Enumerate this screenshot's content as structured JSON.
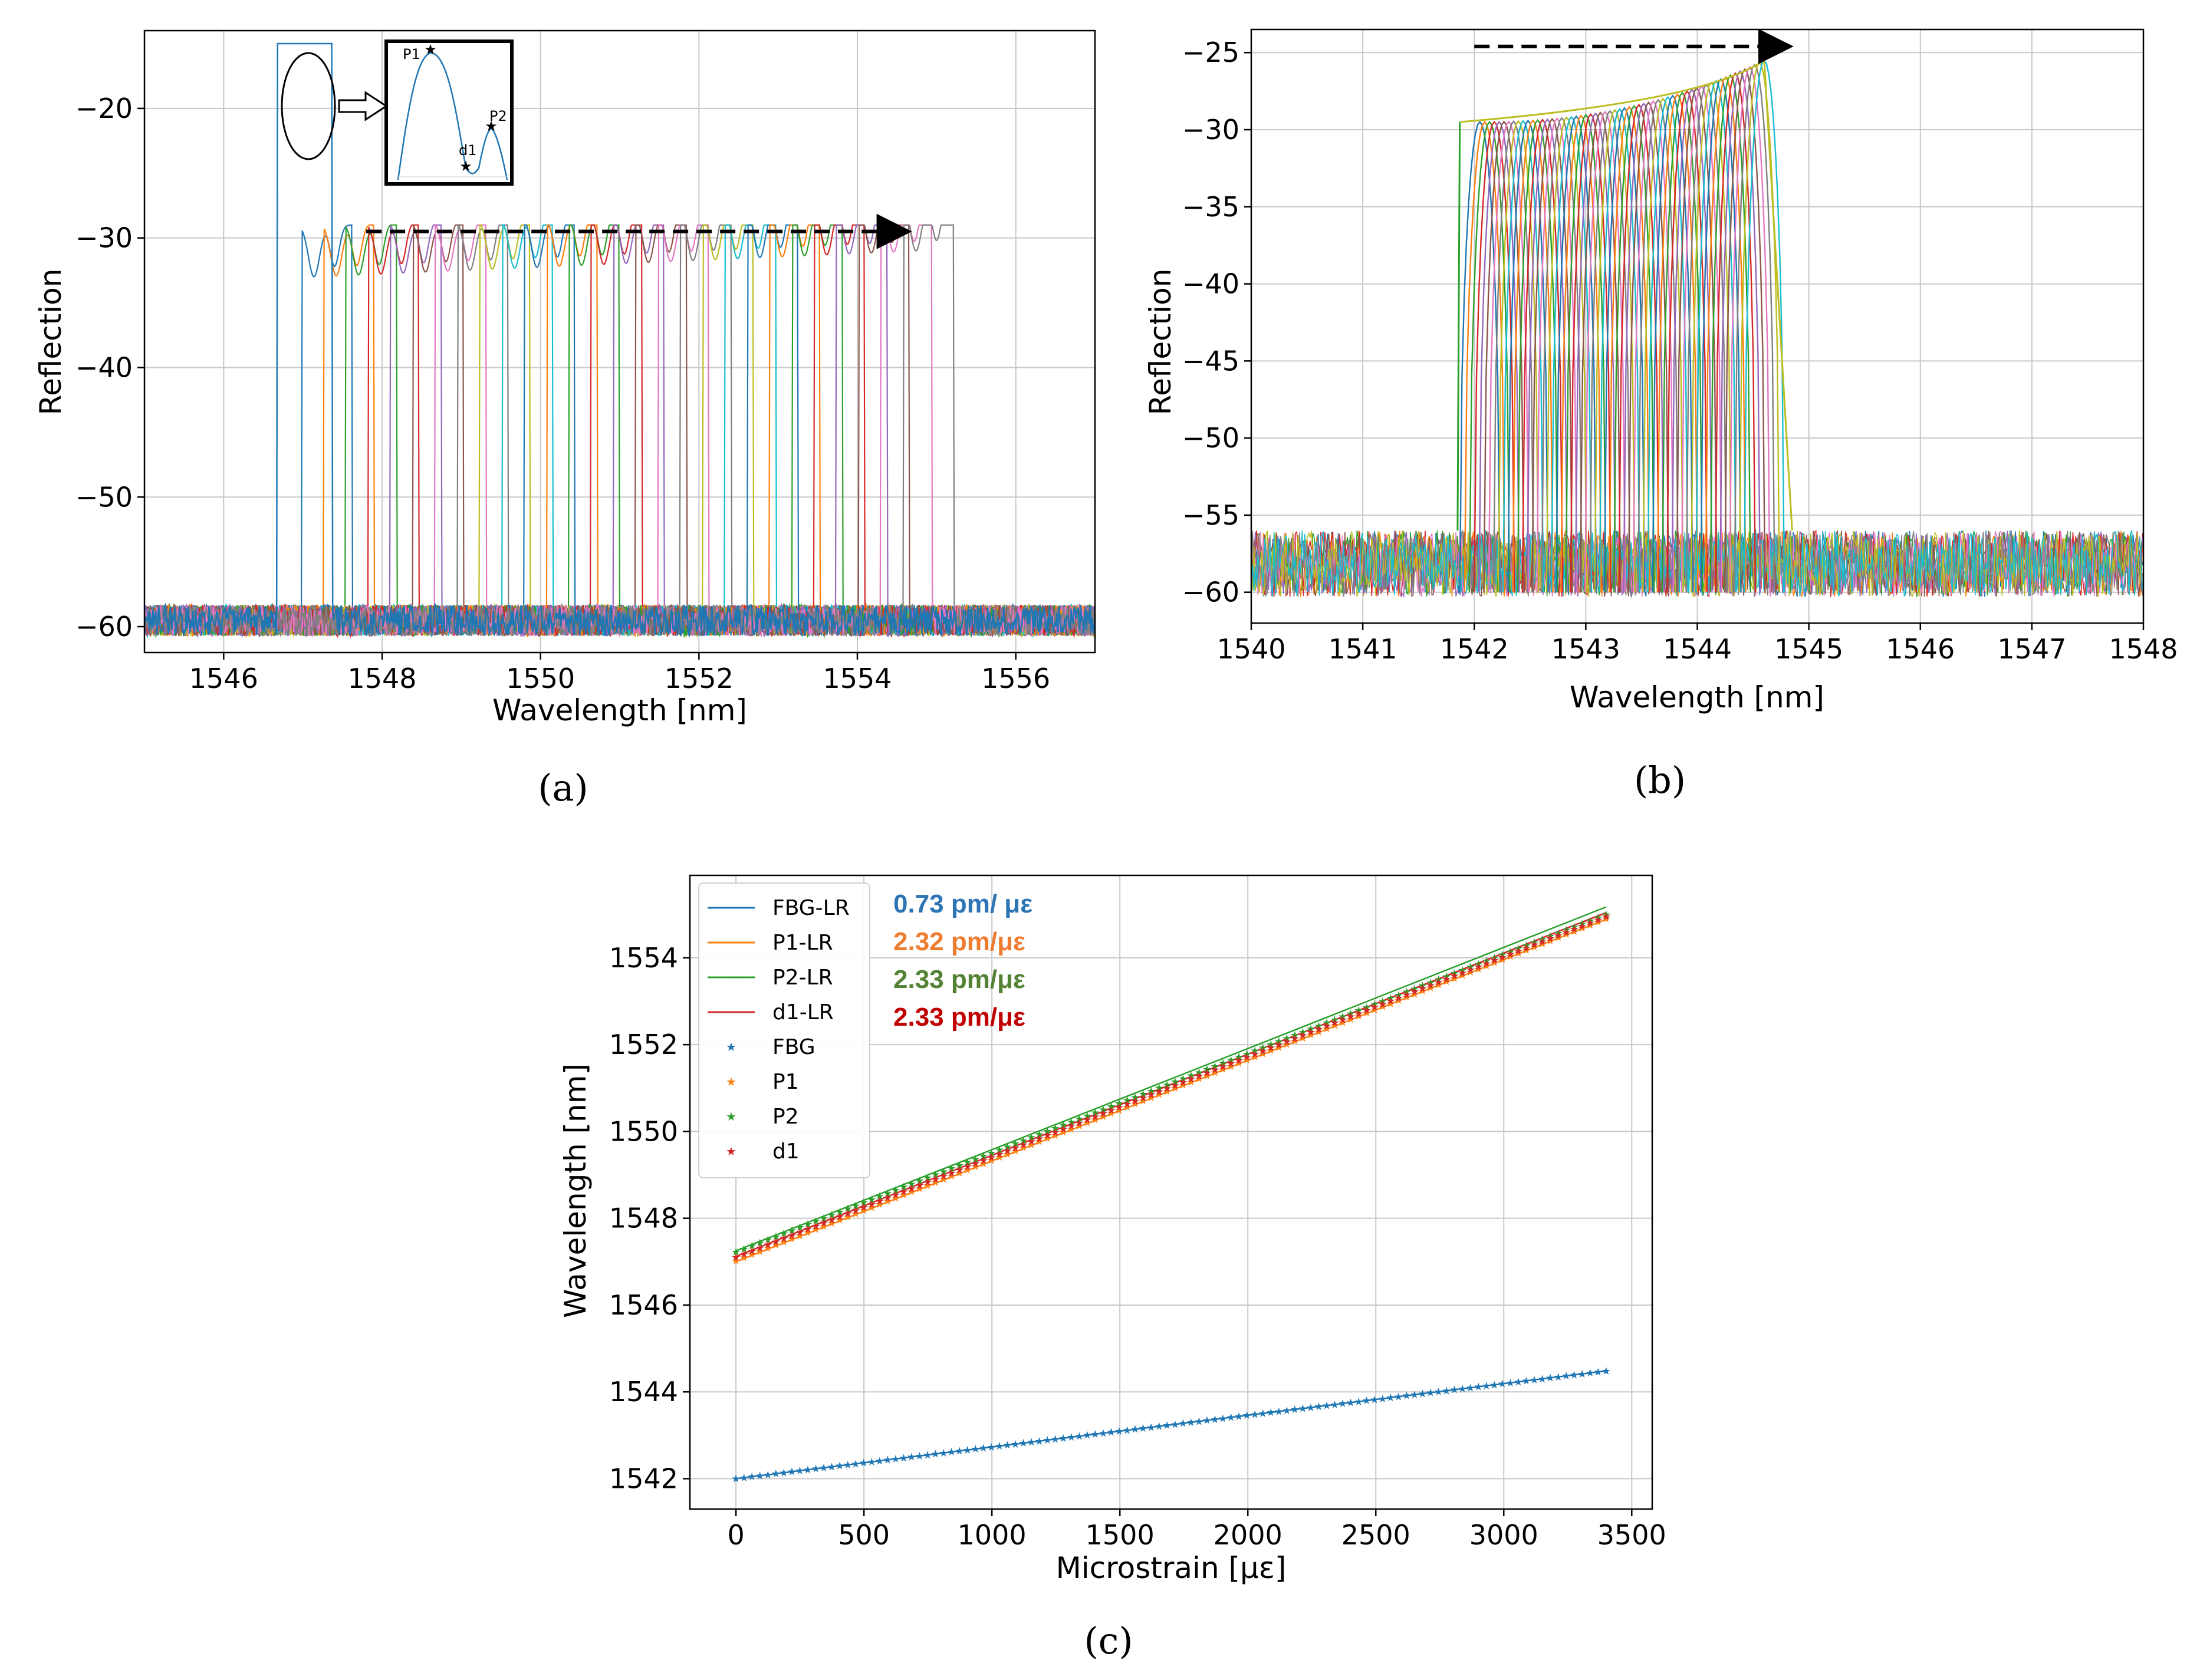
{
  "colors": {
    "blue": "#1f77b4",
    "orange": "#ff7f0e",
    "green": "#2ca02c",
    "red": "#d62728",
    "purple": "#9467bd",
    "brown": "#8c564b",
    "pink": "#e377c2",
    "olive": "#bcbd22",
    "cyan": "#17becf",
    "gray": "#7f7f7f",
    "ann_blue": "#2e75b6",
    "ann_orange": "#ed7d31",
    "ann_green": "#548235",
    "ann_red": "#c00000"
  },
  "panels": {
    "a": {
      "caption": "(a)",
      "inset_labels": {
        "p1": "P1",
        "p2": "P2",
        "d1": "d1"
      }
    },
    "b": {
      "caption": "(b)"
    },
    "c": {
      "caption": "(c)",
      "annotations": [
        "0.73 pm/ με",
        "2.32 pm/με",
        "2.33 pm/με",
        "2.33 pm/με"
      ]
    }
  },
  "chart_data": [
    {
      "id": "a",
      "type": "line",
      "title": "",
      "xlabel": "Wavelength [nm]",
      "ylabel": "Reflection",
      "xlim": [
        1545,
        1557
      ],
      "ylim": [
        -62,
        -14
      ],
      "xticks": [
        "1546",
        "1548",
        "1550",
        "1552",
        "1554",
        "1556"
      ],
      "yticks": [
        "−20",
        "−30",
        "−40",
        "−50",
        "−60"
      ],
      "grid": true,
      "noise_floor": -60,
      "fbg_peak": {
        "center": 1547.02,
        "peak1": -15.5,
        "peak2": -20.2
      },
      "spectra_count": 28,
      "shift_range_nm": [
        1547.3,
        1554.9
      ],
      "peak_levels": [
        -31.5,
        -29.5
      ],
      "arrow": {
        "from": 1547.8,
        "to": 1554.6,
        "y": -29.5
      }
    },
    {
      "id": "b",
      "type": "line",
      "title": "",
      "xlabel": "Wavelength [nm]",
      "ylabel": "Reflection",
      "xlim": [
        1540,
        1548
      ],
      "ylim": [
        -62,
        -23.5
      ],
      "xticks": [
        "1540",
        "1541",
        "1542",
        "1543",
        "1544",
        "1545",
        "1546",
        "1547",
        "1548"
      ],
      "yticks": [
        "−25",
        "−30",
        "−35",
        "−40",
        "−45",
        "−50",
        "−55",
        "−60"
      ],
      "grid": true,
      "noise_floor": -60,
      "band_edges_nm": [
        1541.85,
        1544.85
      ],
      "level_left": -29.5,
      "level_right": -25.5,
      "arrow": {
        "from": 1542.0,
        "to": 1544.8,
        "y": -24.6
      }
    },
    {
      "id": "c",
      "type": "scatter",
      "title": "",
      "xlabel": "Microstrain [με]",
      "ylabel": "Wavelength [nm]",
      "xlim": [
        -180,
        3580
      ],
      "ylim": [
        1541.3,
        1555.9
      ],
      "xticks": [
        "0",
        "500",
        "1000",
        "1500",
        "2000",
        "2500",
        "3000",
        "3500"
      ],
      "yticks": [
        "1542",
        "1544",
        "1546",
        "1548",
        "1550",
        "1552",
        "1554"
      ],
      "grid": true,
      "legend": "top-left",
      "series": [
        {
          "name": "FBG-LR",
          "kind": "line",
          "color": "#1f77b4",
          "intercept": 1542.0,
          "slope_pm": 0.73
        },
        {
          "name": "P1-LR",
          "kind": "line",
          "color": "#ff7f0e",
          "intercept": 1547.0,
          "slope_pm": 2.32
        },
        {
          "name": "P2-LR",
          "kind": "line",
          "color": "#2ca02c",
          "intercept": 1547.25,
          "slope_pm": 2.33
        },
        {
          "name": "d1-LR",
          "kind": "line",
          "color": "#d62728",
          "intercept": 1547.12,
          "slope_pm": 2.33
        },
        {
          "name": "FBG",
          "kind": "marker",
          "color": "#1f77b4",
          "x_start": 0,
          "x_end": 3400,
          "y_start": 1542.0,
          "y_end": 1544.48
        },
        {
          "name": "P1",
          "kind": "marker",
          "color": "#ff7f0e",
          "x_start": 0,
          "x_end": 3400,
          "y_start": 1547.02,
          "y_end": 1554.9
        },
        {
          "name": "P2",
          "kind": "marker",
          "color": "#2ca02c",
          "x_start": 0,
          "x_end": 3400,
          "y_start": 1547.22,
          "y_end": 1555.0
        },
        {
          "name": "d1",
          "kind": "marker",
          "color": "#d62728",
          "x_start": 0,
          "x_end": 3400,
          "y_start": 1547.1,
          "y_end": 1554.95
        }
      ]
    }
  ]
}
